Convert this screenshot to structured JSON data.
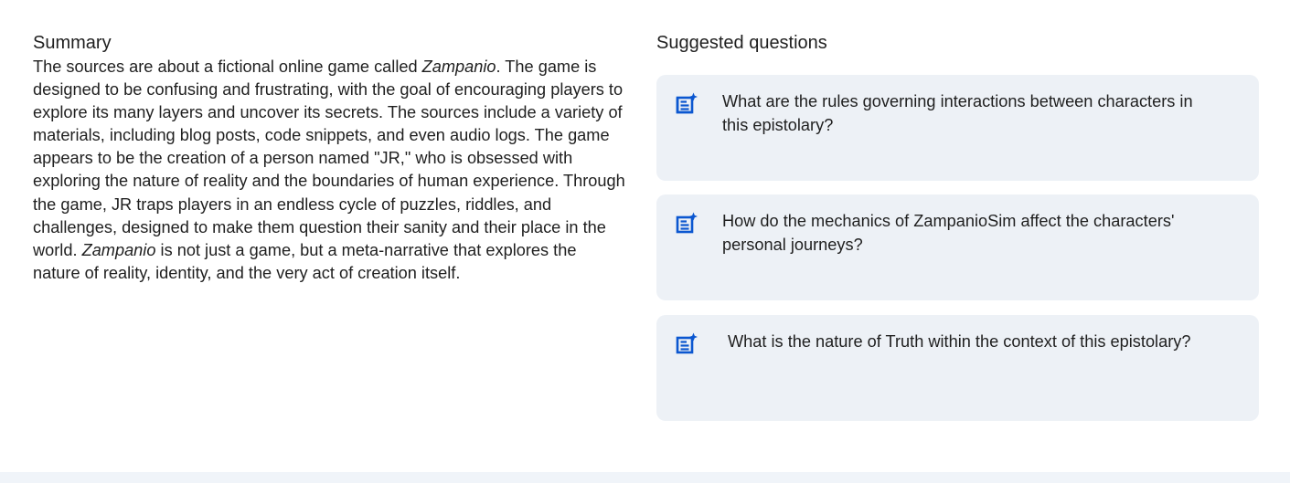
{
  "summary": {
    "title": "Summary",
    "segments": [
      {
        "text": "The sources are about a fictional online game called ",
        "italic": false
      },
      {
        "text": "Zampanio",
        "italic": true
      },
      {
        "text": ". The game is designed to be confusing and frustrating, with the goal of encouraging players to explore its many layers and uncover its secrets. The sources include a variety of materials, including blog posts, code snippets, and even audio logs. The game appears to be the creation of a person named \"JR,\" who is obsessed with exploring the nature of reality and the boundaries of human experience. Through the game, JR traps players in an endless cycle of puzzles, riddles, and challenges, designed to make them question their sanity and their place in the world. ",
        "italic": false
      },
      {
        "text": "Zampanio",
        "italic": true
      },
      {
        "text": " is not just a game, but a meta-narrative that explores the nature of reality, identity, and the very act of creation itself.",
        "italic": false
      }
    ]
  },
  "suggested": {
    "title": "Suggested questions",
    "icon": "note-sparkle-icon",
    "questions": [
      "What are the rules governing interactions between characters in this epistolary?",
      "How do the mechanics of ZampanioSim affect the characters' personal journeys?",
      "What is the nature of Truth within the context of this epistolary?"
    ]
  },
  "colors": {
    "card_background": "#edf1f6",
    "icon": "#0b57d0",
    "text": "#1f1f1f",
    "bottom_bar": "#f0f4f9"
  }
}
